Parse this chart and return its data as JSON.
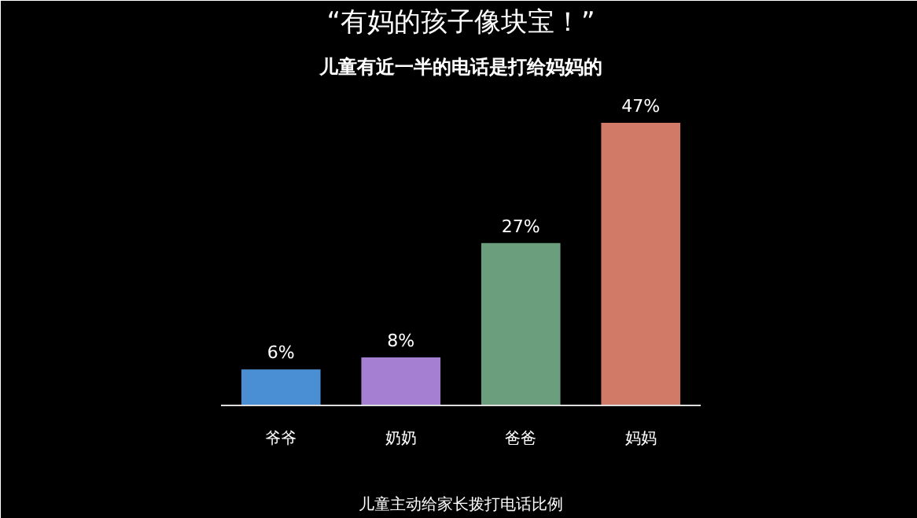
{
  "chart_data": {
    "type": "bar",
    "title": "“有妈的孩子像块宝！”",
    "subtitle": "儿童有近一半的电话是打给妈妈的",
    "xlabel": "儿童主动给家长拨打电话比例",
    "categories": [
      "爷爷",
      "奶奶",
      "爸爸",
      "妈妈"
    ],
    "values": [
      6,
      8,
      27,
      47
    ],
    "colors": [
      "#4a8fd4",
      "#a47fd2",
      "#6a9e7c",
      "#d27a68"
    ],
    "value_labels": [
      "6%",
      "8%",
      "27%",
      "47%"
    ],
    "grid": false
  }
}
